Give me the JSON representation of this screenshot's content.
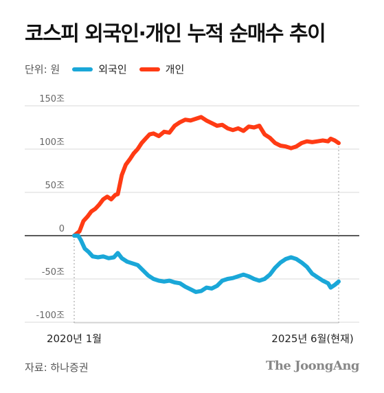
{
  "title": "코스피 외국인·개인 누적 순매수 추이",
  "legend": {
    "unit_label": "단위: 원",
    "foreign_label": "외국인",
    "individual_label": "개인"
  },
  "source": "자료: 하나증권",
  "brand": "The JoongAng",
  "colors": {
    "foreign": "#1aa7d8",
    "individual": "#ff3b14",
    "zero_line": "#222222",
    "grid": "#d9d9d9"
  },
  "chart_data": {
    "type": "line",
    "x_start_label": "2020년 1월",
    "x_end_label": "2025년 6월(현재)",
    "y_ticks": [
      {
        "value": 150,
        "label": "150조"
      },
      {
        "value": 100,
        "label": "100조"
      },
      {
        "value": 50,
        "label": "50조"
      },
      {
        "value": 0,
        "label": "0"
      },
      {
        "value": -50,
        "label": "-50조"
      },
      {
        "value": -100,
        "label": "-100조"
      }
    ],
    "ylim": [
      -100,
      150
    ],
    "x_range": [
      0,
      1
    ],
    "series": [
      {
        "name": "개인",
        "key": "individual",
        "points": [
          [
            0.0,
            0
          ],
          [
            0.02,
            5
          ],
          [
            0.035,
            17
          ],
          [
            0.05,
            22
          ],
          [
            0.065,
            28
          ],
          [
            0.08,
            31
          ],
          [
            0.095,
            36
          ],
          [
            0.11,
            42
          ],
          [
            0.125,
            45
          ],
          [
            0.14,
            42
          ],
          [
            0.155,
            47
          ],
          [
            0.165,
            48
          ],
          [
            0.18,
            70
          ],
          [
            0.195,
            82
          ],
          [
            0.21,
            88
          ],
          [
            0.225,
            95
          ],
          [
            0.24,
            100
          ],
          [
            0.255,
            107
          ],
          [
            0.27,
            112
          ],
          [
            0.285,
            117
          ],
          [
            0.3,
            118
          ],
          [
            0.32,
            115
          ],
          [
            0.34,
            120
          ],
          [
            0.36,
            119
          ],
          [
            0.38,
            127
          ],
          [
            0.4,
            131
          ],
          [
            0.42,
            134
          ],
          [
            0.44,
            133
          ],
          [
            0.46,
            135
          ],
          [
            0.48,
            137
          ],
          [
            0.5,
            133
          ],
          [
            0.52,
            130
          ],
          [
            0.54,
            127
          ],
          [
            0.56,
            128
          ],
          [
            0.58,
            124
          ],
          [
            0.6,
            122
          ],
          [
            0.62,
            124
          ],
          [
            0.64,
            121
          ],
          [
            0.66,
            126
          ],
          [
            0.68,
            125
          ],
          [
            0.7,
            127
          ],
          [
            0.72,
            117
          ],
          [
            0.74,
            113
          ],
          [
            0.76,
            107
          ],
          [
            0.78,
            104
          ],
          [
            0.8,
            103
          ],
          [
            0.82,
            101
          ],
          [
            0.84,
            103
          ],
          [
            0.86,
            107
          ],
          [
            0.88,
            109
          ],
          [
            0.9,
            108
          ],
          [
            0.92,
            109
          ],
          [
            0.94,
            110
          ],
          [
            0.96,
            109
          ],
          [
            0.97,
            112
          ],
          [
            0.985,
            110
          ],
          [
            1.0,
            107
          ]
        ]
      },
      {
        "name": "외국인",
        "key": "foreign",
        "points": [
          [
            0.0,
            0
          ],
          [
            0.015,
            0
          ],
          [
            0.025,
            -5
          ],
          [
            0.04,
            -15
          ],
          [
            0.055,
            -19
          ],
          [
            0.07,
            -24
          ],
          [
            0.09,
            -25
          ],
          [
            0.11,
            -24
          ],
          [
            0.13,
            -26
          ],
          [
            0.15,
            -25
          ],
          [
            0.165,
            -20
          ],
          [
            0.18,
            -26
          ],
          [
            0.2,
            -30
          ],
          [
            0.22,
            -32
          ],
          [
            0.24,
            -34
          ],
          [
            0.26,
            -40
          ],
          [
            0.28,
            -46
          ],
          [
            0.3,
            -50
          ],
          [
            0.32,
            -52
          ],
          [
            0.34,
            -53
          ],
          [
            0.36,
            -52
          ],
          [
            0.38,
            -54
          ],
          [
            0.4,
            -55
          ],
          [
            0.42,
            -59
          ],
          [
            0.44,
            -62
          ],
          [
            0.46,
            -65
          ],
          [
            0.48,
            -64
          ],
          [
            0.5,
            -60
          ],
          [
            0.52,
            -61
          ],
          [
            0.54,
            -58
          ],
          [
            0.56,
            -52
          ],
          [
            0.58,
            -50
          ],
          [
            0.6,
            -49
          ],
          [
            0.62,
            -47
          ],
          [
            0.64,
            -45
          ],
          [
            0.66,
            -47
          ],
          [
            0.68,
            -50
          ],
          [
            0.7,
            -52
          ],
          [
            0.72,
            -50
          ],
          [
            0.74,
            -45
          ],
          [
            0.76,
            -37
          ],
          [
            0.78,
            -31
          ],
          [
            0.8,
            -27
          ],
          [
            0.82,
            -25
          ],
          [
            0.84,
            -27
          ],
          [
            0.86,
            -31
          ],
          [
            0.88,
            -36
          ],
          [
            0.9,
            -44
          ],
          [
            0.92,
            -48
          ],
          [
            0.94,
            -52
          ],
          [
            0.96,
            -55
          ],
          [
            0.97,
            -60
          ],
          [
            0.985,
            -57
          ],
          [
            1.0,
            -53
          ]
        ]
      }
    ]
  }
}
